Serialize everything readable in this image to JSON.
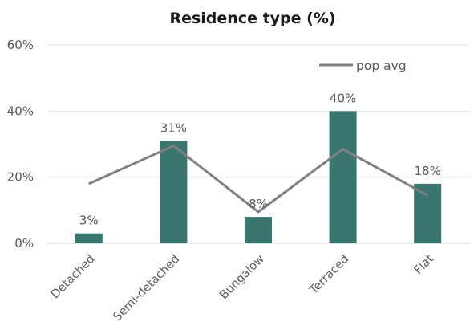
{
  "chart_data": {
    "type": "bar",
    "title": "Residence type (%)",
    "xlabel": "",
    "ylabel": "",
    "categories": [
      "Detached",
      "Semi-detached",
      "Bungalow",
      "Terraced",
      "Flat"
    ],
    "series": [
      {
        "kind": "bar",
        "values": [
          3,
          31,
          8,
          40,
          18
        ],
        "data_labels": [
          "3%",
          "31%",
          "8%",
          "40%",
          "18%"
        ],
        "color": "#3a7670"
      },
      {
        "name": "pop avg",
        "kind": "line",
        "values": [
          18,
          29.5,
          9.5,
          28.5,
          14.5
        ],
        "color": "#7f7f7f"
      }
    ],
    "ylim": [
      0,
      60
    ],
    "yticks": [
      0,
      20,
      40,
      60
    ],
    "ytick_labels": [
      "0%",
      "20%",
      "40%",
      "60%"
    ],
    "grid": true,
    "legend_position": "top-right"
  }
}
